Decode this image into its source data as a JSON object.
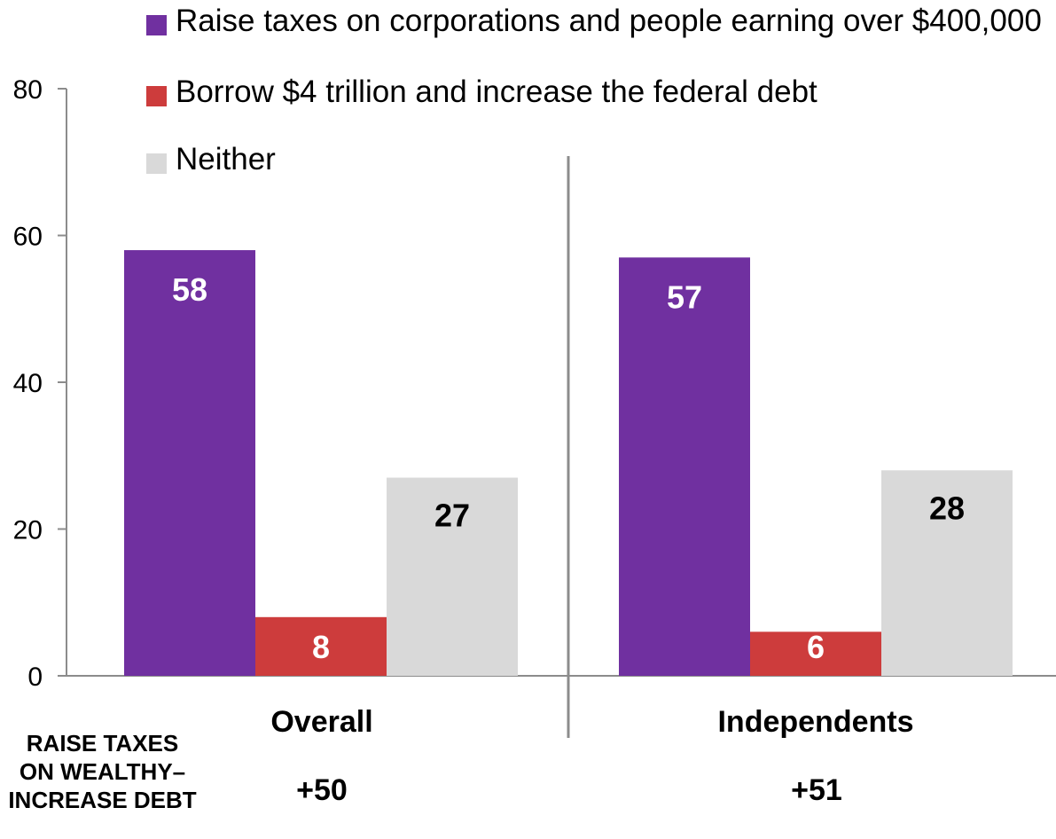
{
  "chart_data": {
    "type": "bar",
    "categories": [
      "Overall",
      "Independents"
    ],
    "series": [
      {
        "name": "Raise taxes on corporations and people earning over $400,000",
        "values": [
          58,
          57
        ],
        "color": "#7030a0",
        "label_color": "#ffffff"
      },
      {
        "name": "Borrow $4 trillion and increase the federal debt",
        "values": [
          8,
          6
        ],
        "color": "#cd3c3c",
        "label_color": "#ffffff"
      },
      {
        "name": "Neither",
        "values": [
          27,
          28
        ],
        "color": "#d9d9d9",
        "label_color": "#000000"
      }
    ],
    "yticks": [
      "0",
      "20",
      "40",
      "60",
      "80"
    ],
    "ylim": [
      0,
      80
    ],
    "legend_position": "top",
    "grid": false
  },
  "difference_row": {
    "label_lines": [
      "RAISE TAXES",
      "ON WEALTHY–",
      "INCREASE DEBT"
    ],
    "values": [
      "+50",
      "+51"
    ]
  }
}
